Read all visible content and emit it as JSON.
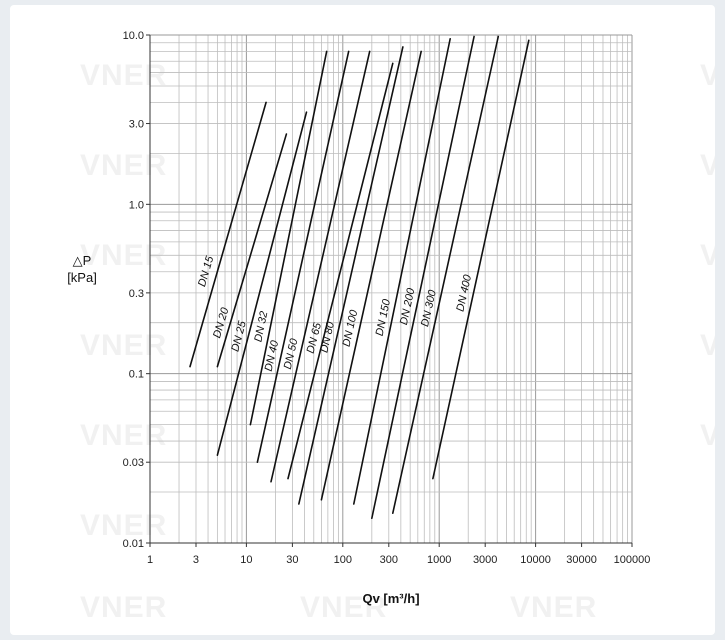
{
  "chart_data": {
    "type": "line",
    "x_scale": "log",
    "y_scale": "log",
    "xlabel": "Qv [m³/h]",
    "ylabel": [
      "△P",
      "[kPa]"
    ],
    "xlim": [
      1,
      100000
    ],
    "ylim": [
      0.01,
      10
    ],
    "x_ticks": [
      "1",
      "3",
      "10",
      "30",
      "100",
      "300",
      "1000",
      "3000",
      "10000",
      "30000",
      "100000"
    ],
    "y_ticks": [
      "10.0",
      "3.0",
      "1.0",
      "0.3",
      "0.1",
      "0.03",
      "0.01"
    ],
    "grid": true,
    "series": [
      {
        "name": "DN 15",
        "x": [
          2.6,
          16
        ],
        "y": [
          0.11,
          4.0
        ]
      },
      {
        "name": "DN 20",
        "x": [
          5.0,
          26
        ],
        "y": [
          0.11,
          2.6
        ]
      },
      {
        "name": "DN 25",
        "x": [
          5.0,
          42
        ],
        "y": [
          0.033,
          3.5
        ]
      },
      {
        "name": "DN 32",
        "x": [
          11,
          68
        ],
        "y": [
          0.05,
          8.0
        ]
      },
      {
        "name": "DN 40",
        "x": [
          13,
          115
        ],
        "y": [
          0.03,
          8.0
        ]
      },
      {
        "name": "DN 50",
        "x": [
          18,
          190
        ],
        "y": [
          0.023,
          8.0
        ]
      },
      {
        "name": "DN 65",
        "x": [
          27,
          330
        ],
        "y": [
          0.024,
          6.8
        ]
      },
      {
        "name": "DN 80",
        "x": [
          35,
          420
        ],
        "y": [
          0.017,
          8.5
        ]
      },
      {
        "name": "DN 100",
        "x": [
          60,
          650
        ],
        "y": [
          0.018,
          8.0
        ]
      },
      {
        "name": "DN 150",
        "x": [
          130,
          1300
        ],
        "y": [
          0.017,
          9.5
        ]
      },
      {
        "name": "DN 200",
        "x": [
          200,
          2300
        ],
        "y": [
          0.014,
          9.8
        ]
      },
      {
        "name": "DN 300",
        "x": [
          330,
          4100
        ],
        "y": [
          0.015,
          9.8
        ]
      },
      {
        "name": "DN 400",
        "x": [
          860,
          8500
        ],
        "y": [
          0.024,
          9.3
        ]
      }
    ],
    "annotations": [
      "DN 15",
      "DN 20",
      "DN 25",
      "DN 32",
      "DN 40",
      "DN 50",
      "DN 65",
      "DN 80",
      "DN 100",
      "DN 150",
      "DN 200",
      "DN 300",
      "DN 400"
    ]
  },
  "watermark": "VNER"
}
